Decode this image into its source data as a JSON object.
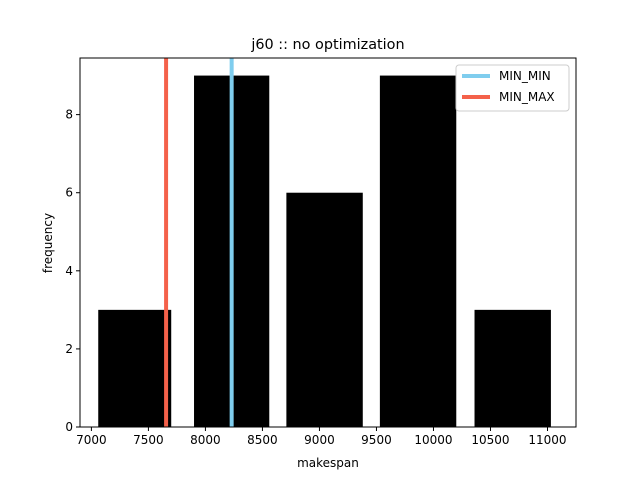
{
  "chart_data": {
    "type": "bar",
    "title": "j60 :: no optimization",
    "xlabel": "makespan",
    "ylabel": "frequency",
    "xlim": [
      6900,
      11250
    ],
    "ylim": [
      0,
      9.45
    ],
    "xticks": [
      7000,
      7500,
      8000,
      8500,
      9000,
      9500,
      10000,
      10500,
      11000
    ],
    "yticks": [
      0,
      2,
      4,
      6,
      8
    ],
    "bars": [
      {
        "x0": 7060,
        "x1": 7700,
        "value": 3
      },
      {
        "x0": 7900,
        "x1": 8560,
        "value": 9
      },
      {
        "x0": 8710,
        "x1": 9380,
        "value": 6
      },
      {
        "x0": 9530,
        "x1": 10200,
        "value": 9
      },
      {
        "x0": 10360,
        "x1": 11030,
        "value": 3
      }
    ],
    "vlines": [
      {
        "name": "MIN_MIN",
        "x": 8230,
        "color": "#7fcdee"
      },
      {
        "name": "MIN_MAX",
        "x": 7655,
        "color": "#f4614a"
      }
    ],
    "bar_color": "#000000",
    "legend_position": "top-right",
    "grid": false
  }
}
